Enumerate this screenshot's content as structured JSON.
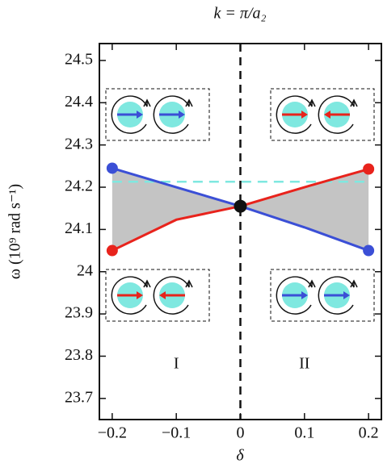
{
  "chart_data": {
    "type": "line",
    "title": "k = π/a₂",
    "x_label": "δ",
    "y_label": "ω (10⁹ rad s⁻¹)",
    "x": [
      -0.2,
      -0.1,
      0,
      0.1,
      0.2
    ],
    "series": [
      {
        "color": "#3b4fd6",
        "values": [
          24.245,
          24.2,
          24.155,
          24.105,
          24.05
        ]
      },
      {
        "color": "#e8231c",
        "values": [
          24.05,
          24.123,
          24.155,
          24.2,
          24.243
        ]
      }
    ],
    "crossing": {
      "x": 0,
      "y": 24.155,
      "color": "#111111"
    },
    "reference_line": {
      "y": 24.213,
      "color": "#7fe8e0"
    },
    "fill_color": "#c4c4c4",
    "annotations": [
      {
        "text": "I",
        "x": -0.1,
        "y": 23.78
      },
      {
        "text": "II",
        "x": 0.1,
        "y": 23.78
      }
    ],
    "xlim": [
      -0.22,
      0.22
    ],
    "ylim": [
      23.65,
      24.54
    ],
    "xticks": [
      {
        "value": -0.2,
        "label": "−0.2"
      },
      {
        "value": -0.1,
        "label": "−0.1"
      },
      0,
      0.1,
      0.2
    ],
    "yticks": [
      23.7,
      23.8,
      23.9,
      24,
      24.1,
      24.2,
      24.3,
      24.4,
      24.5
    ]
  }
}
